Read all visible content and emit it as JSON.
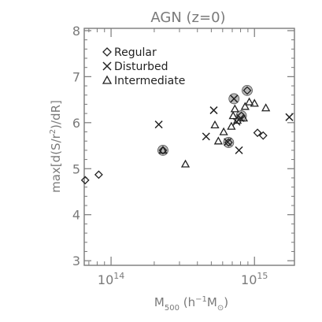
{
  "chart_data": {
    "type": "scatter",
    "title": "AGN  (z=0)",
    "xlabel": "M500 (h-1 M⊙)",
    "ylabel": "max[d(S/r2)/dR]",
    "xscale": "log",
    "xlim": [
      65000000000000.0,
      1900000000000000.0
    ],
    "ylim": [
      2.9,
      8.05
    ],
    "x_ticks": [
      100000000000000.0,
      1000000000000000.0
    ],
    "x_tick_labels": [
      {
        "base": "10",
        "exp": "14"
      },
      {
        "base": "10",
        "exp": "15"
      }
    ],
    "y_ticks": [
      3,
      4,
      5,
      6,
      7,
      8
    ],
    "legend_placement": "top-left",
    "legend": [
      "Regular",
      "Disturbed",
      "Intermediate"
    ],
    "series": [
      {
        "name": "Regular",
        "marker": "diamond",
        "points": [
          {
            "x": 66000000000000.0,
            "y": 4.75
          },
          {
            "x": 82000000000000.0,
            "y": 4.87
          },
          {
            "x": 230000000000000.0,
            "y": 5.4
          },
          {
            "x": 660000000000000.0,
            "y": 5.57
          },
          {
            "x": 810000000000000.0,
            "y": 6.15
          },
          {
            "x": 890000000000000.0,
            "y": 6.7
          },
          {
            "x": 1050000000000000.0,
            "y": 5.78
          },
          {
            "x": 1150000000000000.0,
            "y": 5.72
          }
        ]
      },
      {
        "name": "Disturbed",
        "marker": "cross",
        "points": [
          {
            "x": 215000000000000.0,
            "y": 5.96
          },
          {
            "x": 460000000000000.0,
            "y": 5.7
          },
          {
            "x": 520000000000000.0,
            "y": 6.27
          },
          {
            "x": 650000000000000.0,
            "y": 5.58
          },
          {
            "x": 720000000000000.0,
            "y": 6.52
          },
          {
            "x": 750000000000000.0,
            "y": 6.02
          },
          {
            "x": 780000000000000.0,
            "y": 5.4
          },
          {
            "x": 800000000000000.0,
            "y": 6.1
          },
          {
            "x": 1750000000000000.0,
            "y": 6.12
          }
        ]
      },
      {
        "name": "Intermediate",
        "marker": "triangle",
        "points": [
          {
            "x": 230000000000000.0,
            "y": 5.4
          },
          {
            "x": 330000000000000.0,
            "y": 5.1
          },
          {
            "x": 530000000000000.0,
            "y": 5.95
          },
          {
            "x": 560000000000000.0,
            "y": 5.6
          },
          {
            "x": 610000000000000.0,
            "y": 5.8
          },
          {
            "x": 690000000000000.0,
            "y": 5.92
          },
          {
            "x": 710000000000000.0,
            "y": 6.15
          },
          {
            "x": 730000000000000.0,
            "y": 6.3
          },
          {
            "x": 760000000000000.0,
            "y": 6.05
          },
          {
            "x": 840000000000000.0,
            "y": 6.1
          },
          {
            "x": 860000000000000.0,
            "y": 6.35
          },
          {
            "x": 920000000000000.0,
            "y": 6.45
          },
          {
            "x": 1000000000000000.0,
            "y": 6.42
          },
          {
            "x": 1200000000000000.0,
            "y": 6.32
          }
        ]
      }
    ],
    "circled_points": [
      {
        "x": 230000000000000.0,
        "y": 5.4
      },
      {
        "x": 660000000000000.0,
        "y": 5.57
      },
      {
        "x": 720000000000000.0,
        "y": 6.52
      },
      {
        "x": 810000000000000.0,
        "y": 6.15
      },
      {
        "x": 890000000000000.0,
        "y": 6.7
      }
    ],
    "colors": {
      "axes": "#7a7a7a",
      "markers": "#222222"
    }
  }
}
